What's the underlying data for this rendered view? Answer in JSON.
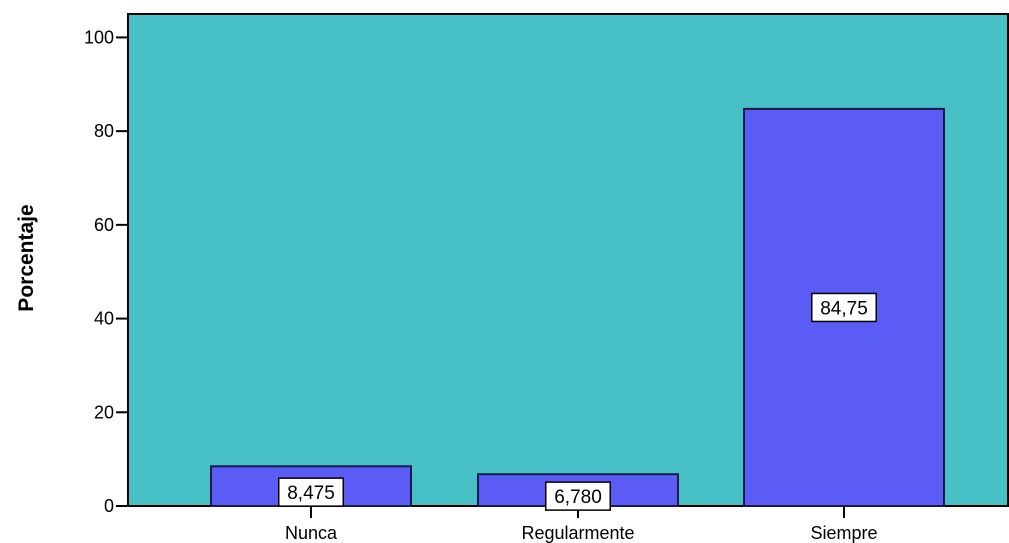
{
  "chart_data": {
    "type": "bar",
    "title": "",
    "xlabel": "",
    "ylabel": "Porcentaje",
    "categories": [
      "Nunca",
      "Regularmente",
      "Siempre"
    ],
    "values": [
      8.475,
      6.78,
      84.75
    ],
    "value_labels": [
      "8,475",
      "6,780",
      "84,75"
    ],
    "ylim": [
      0,
      105
    ],
    "yticks": [
      0,
      20,
      40,
      60,
      80,
      100
    ],
    "ytick_labels": [
      "0",
      "20",
      "40",
      "60",
      "80",
      "100"
    ],
    "grid": false,
    "legend": "none",
    "colors": {
      "plot_background": "#48c1c6",
      "bar_fill": "#5b5cf5",
      "bar_stroke": "#1a1a4a",
      "label_box": "#ffffff"
    }
  }
}
